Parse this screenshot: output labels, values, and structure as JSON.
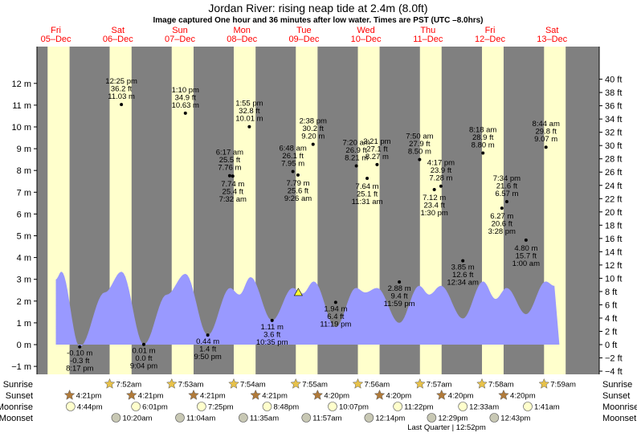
{
  "title": "Jordan River: rising  neap tide at 2.4m (8.0ft)",
  "subtitle": "Image captured One hour and 36 minutes after low water. Times are PST (UTC –8.0hrs)",
  "colors": {
    "day": "#ffffcc",
    "night": "#808080",
    "tide_fill": "#9999ff",
    "extreme_dot": "#000000",
    "day_label": "#ff0000",
    "sun_icon": "#e8c24a",
    "sunset_icon": "#b07a3a",
    "moonrise_icon": "#ffffcc",
    "moonset_icon": "#c8c8b4"
  },
  "days": [
    {
      "name": "Fri",
      "date": "05–Dec"
    },
    {
      "name": "Sat",
      "date": "06–Dec"
    },
    {
      "name": "Sun",
      "date": "07–Dec"
    },
    {
      "name": "Mon",
      "date": "08–Dec"
    },
    {
      "name": "Tue",
      "date": "09–Dec"
    },
    {
      "name": "Wed",
      "date": "10–Dec"
    },
    {
      "name": "Thu",
      "date": "11–Dec"
    },
    {
      "name": "Fri",
      "date": "12–Dec"
    },
    {
      "name": "Sat",
      "date": "13–Dec"
    }
  ],
  "row_labels": {
    "sunrise": "Sunrise",
    "sunset": "Sunset",
    "moonrise": "Moonrise",
    "moonset": "Moonset"
  },
  "sunrise": [
    {
      "day": 1,
      "time": "7:52am"
    },
    {
      "day": 2,
      "time": "7:53am"
    },
    {
      "day": 3,
      "time": "7:54am"
    },
    {
      "day": 4,
      "time": "7:55am"
    },
    {
      "day": 5,
      "time": "7:56am"
    },
    {
      "day": 6,
      "time": "7:57am"
    },
    {
      "day": 7,
      "time": "7:58am"
    },
    {
      "day": 8,
      "time": "7:59am"
    }
  ],
  "sunset": [
    {
      "day": 0,
      "time": "4:21pm"
    },
    {
      "day": 1,
      "time": "4:21pm"
    },
    {
      "day": 2,
      "time": "4:21pm"
    },
    {
      "day": 3,
      "time": "4:21pm"
    },
    {
      "day": 4,
      "time": "4:20pm"
    },
    {
      "day": 5,
      "time": "4:20pm"
    },
    {
      "day": 6,
      "time": "4:20pm"
    },
    {
      "day": 7,
      "time": "4:20pm"
    }
  ],
  "moonrise": [
    {
      "day": 0,
      "time": "4:44pm"
    },
    {
      "day": 1,
      "time": "6:01pm"
    },
    {
      "day": 2,
      "time": "7:25pm"
    },
    {
      "day": 3,
      "time": "8:48pm"
    },
    {
      "day": 4,
      "time": "10:07pm"
    },
    {
      "day": 5,
      "time": "11:22pm"
    },
    {
      "day": 7,
      "time": "12:33am"
    },
    {
      "day": 8,
      "time": "1:41am"
    }
  ],
  "moonset": [
    {
      "day": 1,
      "time": "10:20am"
    },
    {
      "day": 2,
      "time": "11:04am"
    },
    {
      "day": 3,
      "time": "11:35am"
    },
    {
      "day": 4,
      "time": "11:57am"
    },
    {
      "day": 5,
      "time": "12:14pm"
    },
    {
      "day": 6,
      "time": "12:29pm"
    },
    {
      "day": 7,
      "time": "12:43pm"
    }
  ],
  "moon_phase_note": "Last Quarter | 12:52pm",
  "chart_data": {
    "type": "area",
    "title": "Jordan River: rising  neap tide at 2.4m (8.0ft)",
    "x_unit": "days from Fri 05-Dec 00:00 (PST)",
    "y_left_label": "m",
    "y_right_label": "ft",
    "ylim_m": [
      -1.3,
      12.35
    ],
    "yticks_m": [
      "−1 m",
      "0 m",
      "1 m",
      "2 m",
      "3 m",
      "4 m",
      "5 m",
      "6 m",
      "7 m",
      "8 m",
      "9 m",
      "10 m",
      "11 m",
      "12 m"
    ],
    "yticks_ft": [
      "−4 ft",
      "−2 ft",
      "0 ft",
      "2 ft",
      "4 ft",
      "6 ft",
      "8 ft",
      "10 ft",
      "12 ft",
      "14 ft",
      "16 ft",
      "18 ft",
      "20 ft",
      "22 ft",
      "24 ft",
      "26 ft",
      "28 ft",
      "30 ft",
      "32 ft",
      "34 ft",
      "36 ft",
      "38 ft",
      "40 ft"
    ],
    "current": {
      "level_m": 2.4,
      "level_ft": 8.0,
      "state": "rising",
      "x_day": 4.37
    },
    "extremes": [
      {
        "x": 0.845,
        "m": "-0.10 m",
        "ft": "-0.3 ft",
        "time": "8:17 pm",
        "y": -0.1,
        "pos": "below"
      },
      {
        "x": 1.517,
        "m": "11.03 m",
        "ft": "36.2 ft",
        "time": "12:25 pm",
        "y": 11.03,
        "pos": "above"
      },
      {
        "x": 1.878,
        "m": "0.01 m",
        "ft": "0.0 ft",
        "time": "9:04 pm",
        "y": 0.01,
        "pos": "below"
      },
      {
        "x": 2.549,
        "m": "10.63 m",
        "ft": "34.9 ft",
        "time": "1:10 pm",
        "y": 10.63,
        "pos": "above"
      },
      {
        "x": 2.91,
        "m": "0.44 m",
        "ft": "1.4 ft",
        "time": "9:50 pm",
        "y": 0.44,
        "pos": "below"
      },
      {
        "x": 3.263,
        "m": "7.76 m",
        "ft": "25.5 ft",
        "time": "6:17 am",
        "y": 7.76,
        "pos": "above"
      },
      {
        "x": 3.58,
        "m": "10.01 m",
        "ft": "32.8 ft",
        "time": "1:55 pm",
        "y": 10.01,
        "pos": "above"
      },
      {
        "x": 3.947,
        "m": "1.11 m",
        "ft": "3.6 ft",
        "time": "10:35 pm",
        "y": 1.11,
        "pos": "below"
      },
      {
        "x": 4.283,
        "m": "7.95 m",
        "ft": "26.1 ft",
        "time": "6:48 am",
        "y": 7.95,
        "pos": "above"
      },
      {
        "x": 4.608,
        "m": "9.20 m",
        "ft": "30.2 ft",
        "time": "2:38 pm",
        "y": 9.2,
        "pos": "above"
      },
      {
        "x": 4.972,
        "m": "1.94 m",
        "ft": "6.4 ft",
        "time": "11:19 pm",
        "y": 1.94,
        "pos": "below"
      },
      {
        "x": 5.306,
        "m": "8.21 m",
        "ft": "26.9 ft",
        "time": "7:20 am",
        "y": 8.21,
        "pos": "above"
      },
      {
        "x": 5.64,
        "m": "8.27 m",
        "ft": "27.1 ft",
        "time": "3:21 pm",
        "y": 8.27,
        "pos": "above"
      },
      {
        "x": 6.326,
        "m": "8.50 m",
        "ft": "27.9 ft",
        "time": "7:50 am",
        "y": 8.5,
        "pos": "above"
      },
      {
        "x": 7.347,
        "m": "8.80 m",
        "ft": "28.9 ft",
        "time": "8:18 am",
        "y": 8.8,
        "pos": "above"
      },
      {
        "x": 8.364,
        "m": "9.07 m",
        "ft": "29.8 ft",
        "time": "8:44 am",
        "y": 9.07,
        "pos": "above"
      }
    ],
    "extremes_lowleft": [
      {
        "x": 4.365,
        "m": "7.79 m",
        "ft": "25.6 ft",
        "time": "9:26 am",
        "y": 7.79,
        "pos": "below_text"
      },
      {
        "x": 3.313,
        "m": "7.74 m",
        "ft": "25.4 ft",
        "time": "7:32 am",
        "y": 7.74,
        "pos": "below_text"
      },
      {
        "x": 5.48,
        "m": "7.64 m",
        "ft": "25.1 ft",
        "time": "11:31 am",
        "y": 7.64,
        "pos": "below_text"
      },
      {
        "x": 6.563,
        "m": "7.12 m",
        "ft": "23.4 ft",
        "time": "1:30 pm",
        "y": 7.12,
        "pos": "below_text"
      },
      {
        "x": 6.67,
        "m": "7.28 m",
        "ft": "23.9 ft",
        "time": "4:17 pm",
        "y": 7.28,
        "pos": "above"
      },
      {
        "x": 7.653,
        "m": "6.27 m",
        "ft": "20.6 ft",
        "time": "3:28 pm",
        "y": 6.27,
        "pos": "below_text"
      },
      {
        "x": 7.732,
        "m": "6.57 m",
        "ft": "21.6 ft",
        "time": "7:34 pm",
        "y": 6.57,
        "pos": "above"
      },
      {
        "x": 8.042,
        "m": "4.80 m",
        "ft": "15.7 ft",
        "time": "1:00 am",
        "y": 4.8,
        "pos": "below_text"
      },
      {
        "x": 5.999,
        "m": "2.88 m",
        "ft": "9.4 ft",
        "time": "11:59 pm",
        "y": 2.88,
        "pos": "below"
      },
      {
        "x": 7.023,
        "m": "3.85 m",
        "ft": "12.6 ft",
        "time": "12:34 am",
        "y": 3.85,
        "pos": "below"
      }
    ]
  }
}
